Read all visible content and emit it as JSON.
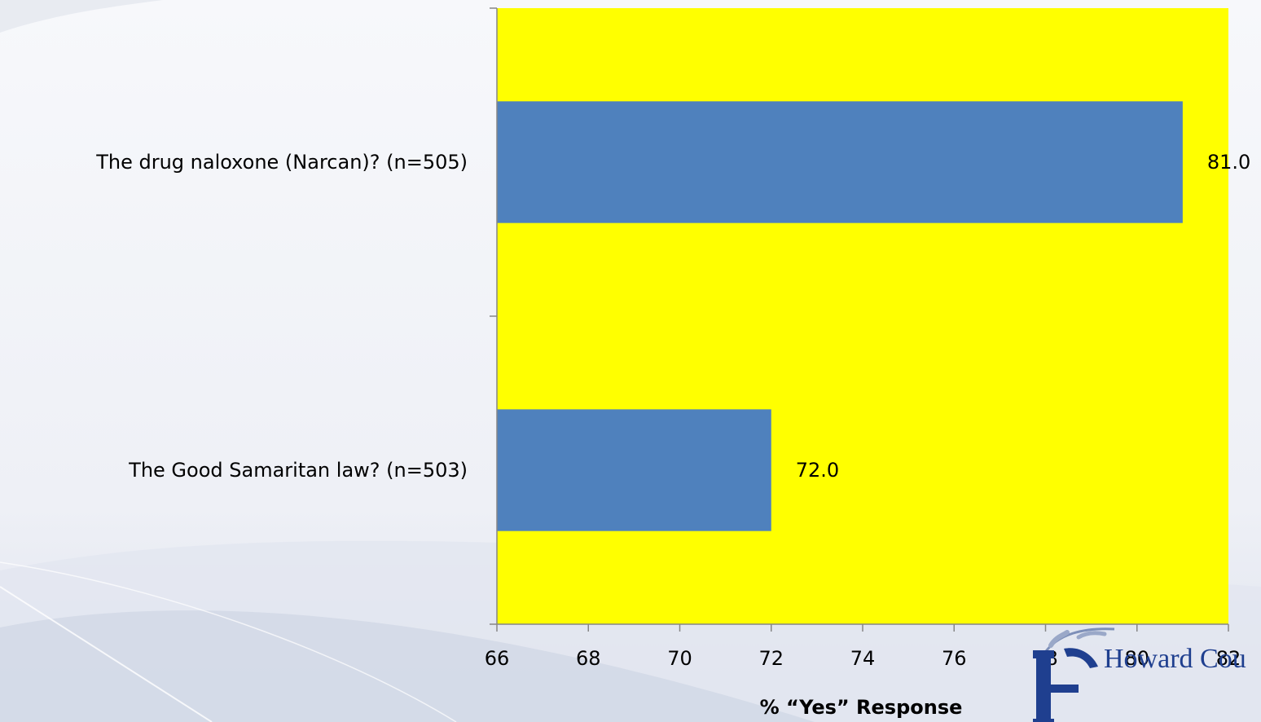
{
  "chart_data": {
    "type": "bar",
    "orientation": "horizontal",
    "categories": [
      "The drug  naloxone (Narcan)? (n=505)",
      "The Good Samaritan law? (n=503)"
    ],
    "values": [
      81.0,
      72.0
    ],
    "data_labels": [
      "81.0",
      "72.0"
    ],
    "xlabel": "% “Yes” Response",
    "ylabel": "",
    "xlim": [
      66,
      82
    ],
    "xticks": [
      66,
      68,
      70,
      72,
      74,
      76,
      78,
      80,
      82
    ],
    "grid": false,
    "legend": "none",
    "colors": {
      "bar": "#4f81bd",
      "plot_background": "#ffff00",
      "axis": "#868686",
      "text": "#000000"
    }
  },
  "logo": {
    "text": "Howard Cou",
    "color": "#1f3f8f"
  }
}
